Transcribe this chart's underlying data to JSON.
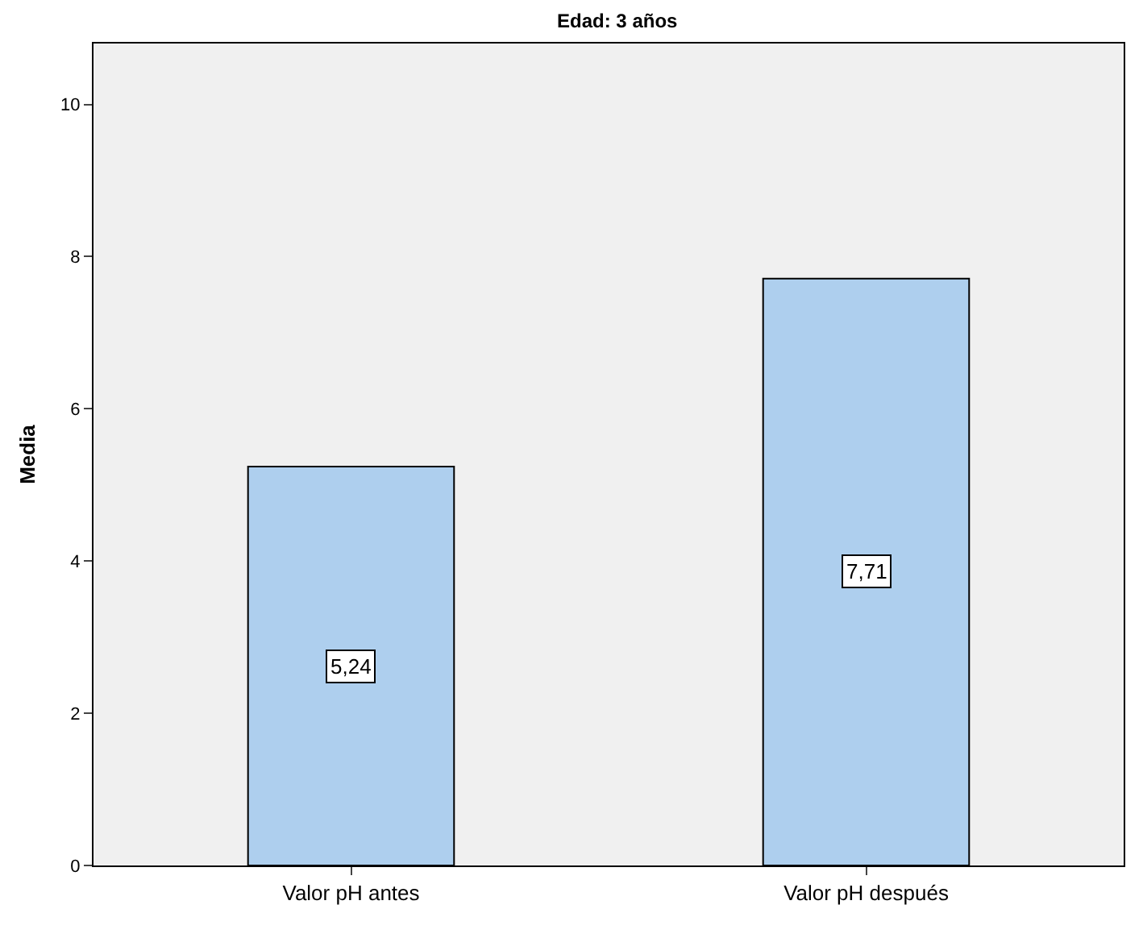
{
  "chart_data": {
    "type": "bar",
    "title": "Edad: 3 años",
    "ylabel": "Media",
    "categories": [
      "Valor pH antes",
      "Valor pH después"
    ],
    "values": [
      5.24,
      7.71
    ],
    "value_labels": [
      "5,24",
      "7,71"
    ],
    "color": "#aecfee",
    "ylim": [
      0,
      10.8
    ],
    "yticks": [
      0,
      2,
      4,
      6,
      8,
      10
    ],
    "grid": false,
    "legend": false
  }
}
